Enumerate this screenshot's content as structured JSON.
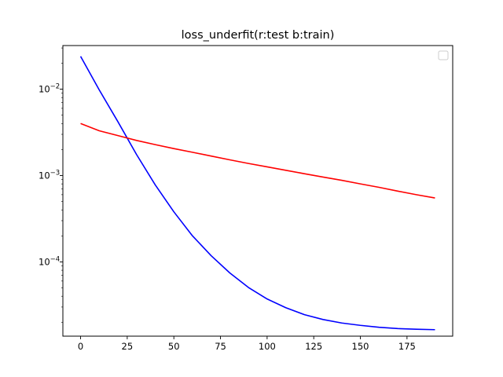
{
  "chart_data": {
    "type": "line",
    "title": "loss_underfit(r:test  b:train)",
    "xlabel": "",
    "ylabel": "",
    "yscale": "log",
    "xlim": [
      -9.5,
      199.5
    ],
    "ylim": [
      1.38e-05,
      0.032
    ],
    "grid": false,
    "legend": {
      "placement": "top-right",
      "entries": []
    },
    "x_ticks": [
      {
        "value": 0,
        "label": "0"
      },
      {
        "value": 25,
        "label": "25"
      },
      {
        "value": 50,
        "label": "50"
      },
      {
        "value": 75,
        "label": "75"
      },
      {
        "value": 100,
        "label": "100"
      },
      {
        "value": 125,
        "label": "125"
      },
      {
        "value": 150,
        "label": "150"
      },
      {
        "value": 175,
        "label": "175"
      }
    ],
    "y_ticks": [
      {
        "value": 0.0001,
        "base": "10",
        "exp": "−4"
      },
      {
        "value": 0.001,
        "base": "10",
        "exp": "−3"
      },
      {
        "value": 0.01,
        "base": "10",
        "exp": "−2"
      }
    ],
    "x": [
      0,
      10,
      20,
      30,
      40,
      50,
      60,
      70,
      80,
      90,
      100,
      110,
      120,
      130,
      140,
      150,
      160,
      170,
      180,
      190
    ],
    "series": [
      {
        "color": "#0000ff",
        "values": [
          0.024,
          0.0098,
          0.0042,
          0.00175,
          0.00078,
          0.00038,
          0.0002,
          0.000118,
          7.45e-05,
          5.05e-05,
          3.72e-05,
          2.95e-05,
          2.45e-05,
          2.15e-05,
          1.96e-05,
          1.84e-05,
          1.75e-05,
          1.69e-05,
          1.66e-05,
          1.64e-05
        ]
      },
      {
        "color": "#ff0000",
        "values": [
          0.004,
          0.0033,
          0.0029,
          0.00255,
          0.00228,
          0.00205,
          0.00186,
          0.00168,
          0.00152,
          0.00138,
          0.00126,
          0.00115,
          0.00105,
          0.00096,
          0.00088,
          0.0008,
          0.00073,
          0.00066,
          0.0006,
          0.00055
        ]
      }
    ]
  }
}
